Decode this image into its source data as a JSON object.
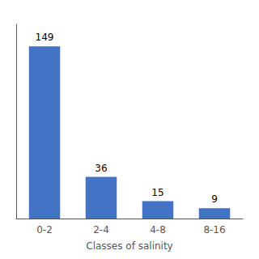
{
  "chart_data": {
    "type": "bar",
    "xlabel": "Classes of salinity",
    "categories": [
      "0-2",
      "2-4",
      "4-8",
      "8-16"
    ],
    "values": [
      149,
      36,
      15,
      9
    ],
    "color": "#4472C4",
    "ylim": [
      0,
      168
    ],
    "grid": false,
    "tick_labels": "x",
    "data_labels": true
  }
}
